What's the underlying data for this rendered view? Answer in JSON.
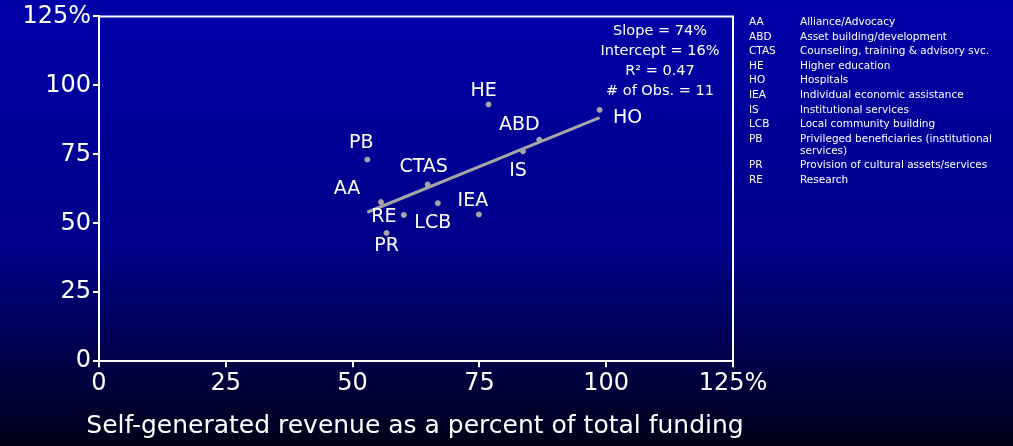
{
  "chart_data": {
    "type": "scatter",
    "xlabel": "Self-generated revenue as a percent of total funding",
    "series": [
      {
        "color": "#a6a6a6",
        "marker": "circle",
        "x": [
          55.6,
          86.8,
          64.8,
          76.8,
          98.7,
          74.9,
          83.6,
          66.8,
          52.9,
          56.7,
          60.1
        ],
        "values": [
          57.7,
          80.3,
          64.1,
          93.1,
          91.1,
          53.2,
          76.1,
          57.3,
          73.1,
          46.5,
          53.0
        ],
        "value_labels": [
          "AA",
          "ABD",
          "CTAS",
          "HE",
          "HO",
          "IEA",
          "IS",
          "LCB",
          "PB",
          "PR",
          "RE"
        ]
      },
      {
        "type": "line",
        "color": "#a6a6a6",
        "marker": "none",
        "x": [
          52.9,
          98.7
        ],
        "values": [
          54.0,
          88.3
        ]
      }
    ],
    "xlim": [
      0,
      125
    ],
    "xticks": [
      0,
      25,
      50,
      75,
      100,
      {
        "value": 125,
        "label": "125%"
      }
    ],
    "ylim": [
      0,
      125
    ],
    "yticks": [
      0,
      25,
      50,
      75,
      100,
      {
        "value": 125,
        "label": "125%"
      }
    ],
    "grid": false,
    "legend": false,
    "line_style": "solid",
    "annotations": [
      "Slope = 74%",
      "Intercept = 16%",
      "R² = 0.47",
      "# of Obs. = 11",
      "AA\tAlliance/Advocacy",
      "ABD\tAsset building/development",
      "CTAS\tCounseling, training & advisory svc.",
      "HE\tHigher education",
      "HO\tHospitals",
      "IEA\tIndividual economic assistance",
      "IS\tInstitutional services",
      "LCB\tLocal community building",
      "PB\tPrivileged beneficiaries (institutional services)",
      "PR\tProvision of cultural assets/services",
      "RE\tResearch"
    ]
  }
}
